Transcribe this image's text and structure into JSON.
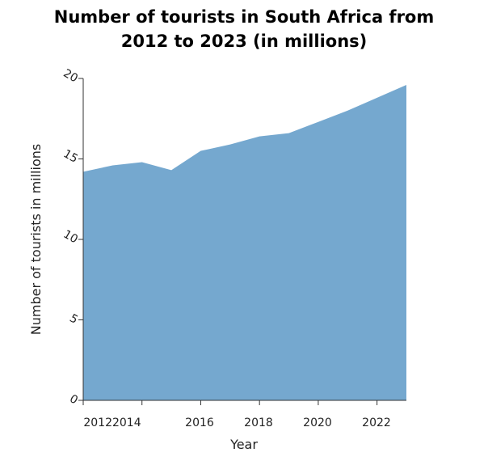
{
  "chart_data": {
    "type": "area",
    "title_lines": [
      "Number of tourists in South Africa from",
      "2012 to 2023 (in millions)"
    ],
    "xlabel": "Year",
    "ylabel": "Number of tourists in millions",
    "x": [
      2012,
      2013,
      2014,
      2015,
      2016,
      2017,
      2018,
      2019,
      2020,
      2021,
      2022,
      2023
    ],
    "values": [
      14.2,
      14.6,
      14.8,
      14.3,
      15.5,
      15.9,
      16.4,
      16.6,
      17.3,
      18.0,
      18.8,
      19.6
    ],
    "x_tick_labels": [
      "20122014",
      "2016",
      "2018",
      "2020",
      "2022"
    ],
    "y_ticks": [
      0,
      5,
      10,
      15,
      20
    ],
    "ylim": [
      0,
      20
    ],
    "xlim": [
      2012,
      2023
    ],
    "grid": false,
    "colors": {
      "area": "#75a8cf",
      "axis": "#333333"
    }
  }
}
